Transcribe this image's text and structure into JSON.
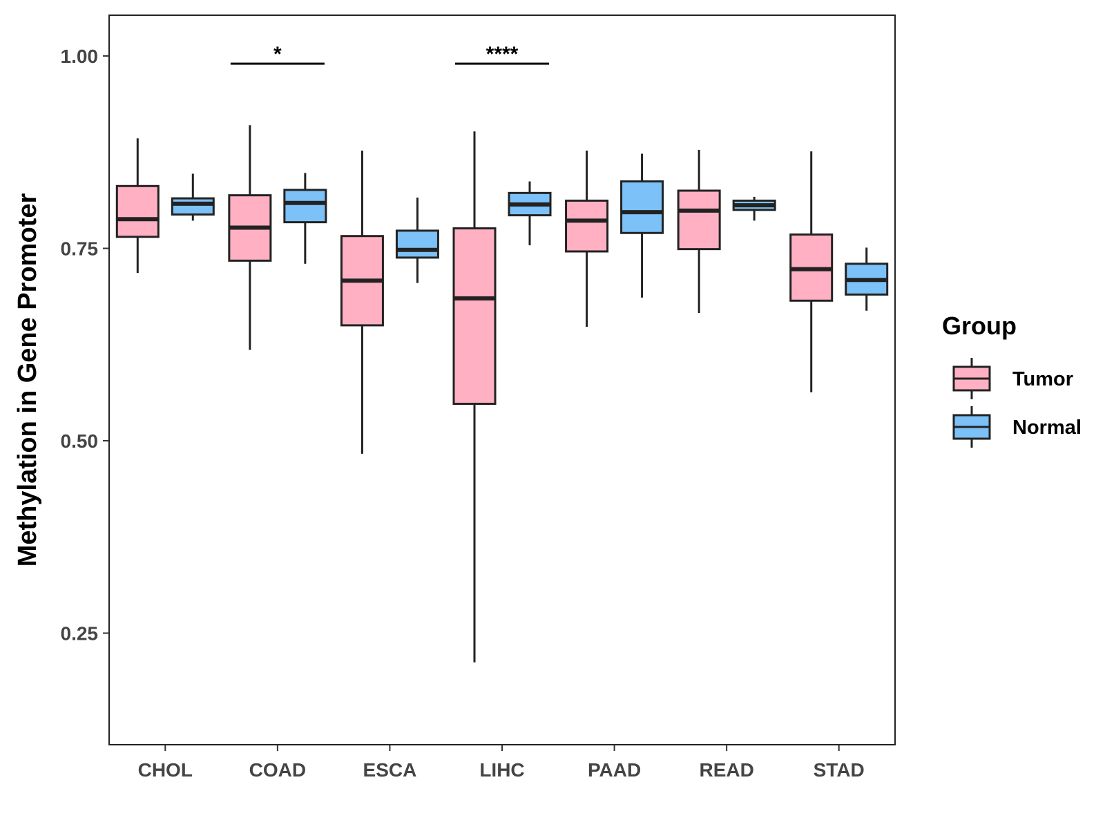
{
  "chart_data": {
    "type": "boxplot",
    "title": "",
    "xlabel": "",
    "ylabel": "Methylation in Gene Promoter",
    "ylim": [
      0.105,
      1.053
    ],
    "yticks": [
      0.25,
      0.5,
      0.75,
      1.0
    ],
    "ytick_labels": [
      "0.25",
      "0.50",
      "0.75",
      "1.00"
    ],
    "categories": [
      "CHOL",
      "COAD",
      "ESCA",
      "LIHC",
      "PAAD",
      "READ",
      "STAD"
    ],
    "legend": {
      "title": "Group",
      "placement": "right",
      "entries": [
        {
          "name": "Tumor",
          "color": "#FFB0C3"
        },
        {
          "name": "Normal",
          "color": "#7CC1F7"
        }
      ]
    },
    "series": [
      {
        "name": "Tumor",
        "color": "#FFB0C3",
        "boxes": [
          {
            "min": 0.718,
            "q1": 0.765,
            "median": 0.788,
            "q3": 0.831,
            "max": 0.893
          },
          {
            "min": 0.618,
            "q1": 0.734,
            "median": 0.777,
            "q3": 0.819,
            "max": 0.91
          },
          {
            "min": 0.483,
            "q1": 0.65,
            "median": 0.708,
            "q3": 0.766,
            "max": 0.877
          },
          {
            "min": 0.212,
            "q1": 0.548,
            "median": 0.685,
            "q3": 0.776,
            "max": 0.902
          },
          {
            "min": 0.648,
            "q1": 0.746,
            "median": 0.786,
            "q3": 0.812,
            "max": 0.877
          },
          {
            "min": 0.666,
            "q1": 0.749,
            "median": 0.799,
            "q3": 0.825,
            "max": 0.878
          },
          {
            "min": 0.563,
            "q1": 0.682,
            "median": 0.723,
            "q3": 0.768,
            "max": 0.876
          }
        ]
      },
      {
        "name": "Normal",
        "color": "#7CC1F7",
        "boxes": [
          {
            "min": 0.786,
            "q1": 0.794,
            "median": 0.808,
            "q3": 0.815,
            "max": 0.847
          },
          {
            "min": 0.73,
            "q1": 0.784,
            "median": 0.809,
            "q3": 0.826,
            "max": 0.848
          },
          {
            "min": 0.705,
            "q1": 0.738,
            "median": 0.748,
            "q3": 0.773,
            "max": 0.816
          },
          {
            "min": 0.754,
            "q1": 0.793,
            "median": 0.807,
            "q3": 0.822,
            "max": 0.837
          },
          {
            "min": 0.686,
            "q1": 0.77,
            "median": 0.797,
            "q3": 0.837,
            "max": 0.873
          },
          {
            "min": 0.786,
            "q1": 0.8,
            "median": 0.806,
            "q3": 0.812,
            "max": 0.817
          },
          {
            "min": 0.669,
            "q1": 0.69,
            "median": 0.709,
            "q3": 0.73,
            "max": 0.751
          }
        ]
      }
    ],
    "significance": [
      {
        "category": "COAD",
        "label": "*",
        "y": 0.99
      },
      {
        "category": "LIHC",
        "label": "****",
        "y": 0.99
      }
    ]
  }
}
